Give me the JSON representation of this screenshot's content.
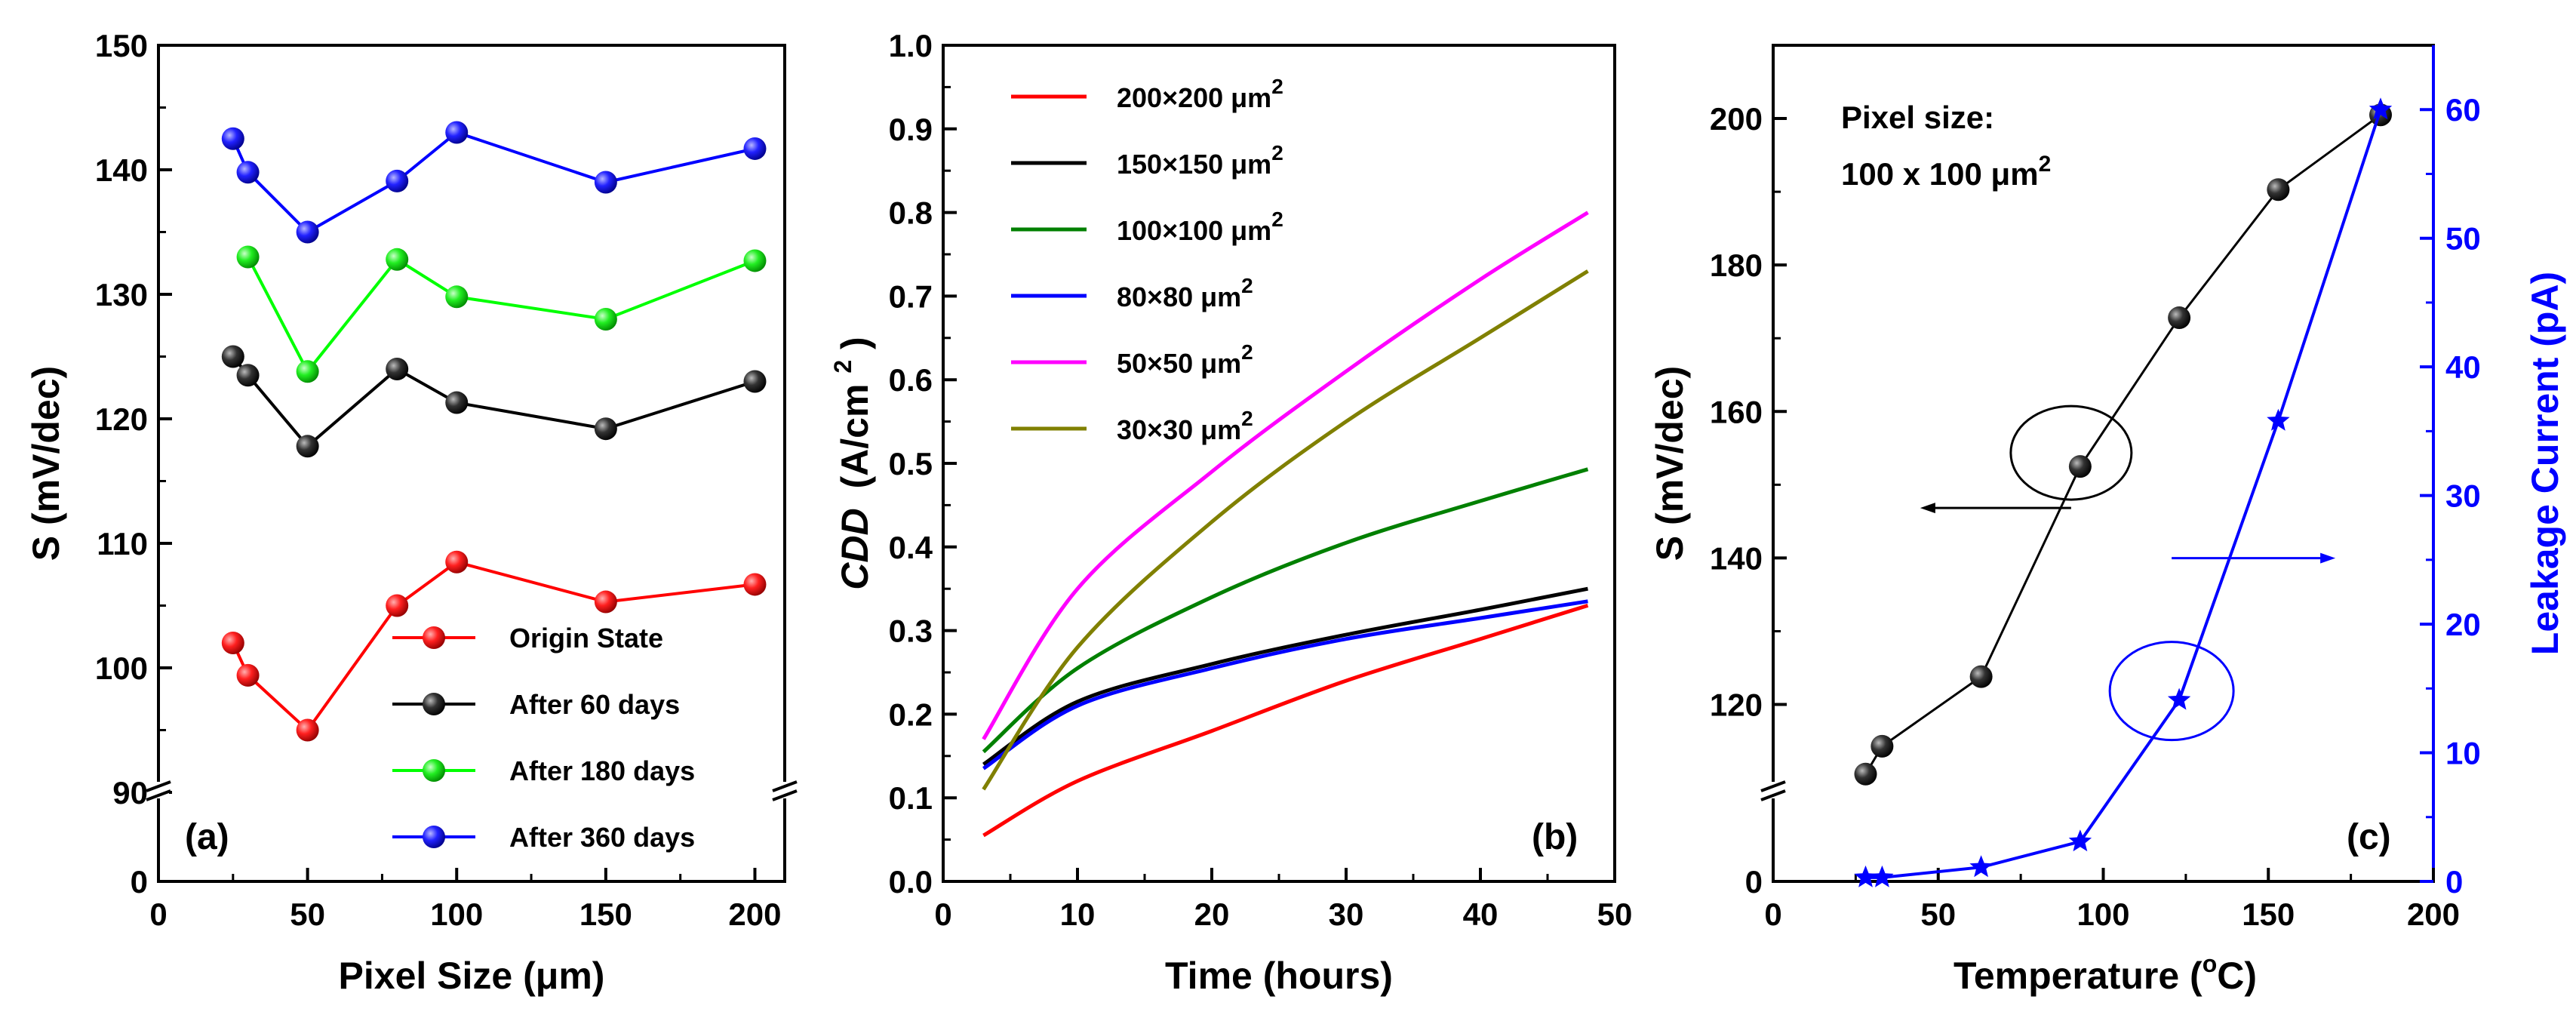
{
  "chart_data": [
    {
      "panel": "(a)",
      "type": "line",
      "xlabel": "Pixel Size (μm)",
      "ylabel": "S (mV/dec)",
      "xlim": [
        0,
        210
      ],
      "xticks": [
        "0",
        "50",
        "100",
        "150",
        "200"
      ],
      "ylim_lower": [
        0,
        10
      ],
      "ylim_upper": [
        90,
        150
      ],
      "yticks_lower": [
        "0"
      ],
      "yticks_upper": [
        "90",
        "100",
        "110",
        "120",
        "130",
        "140",
        "150"
      ],
      "axis_break": true,
      "legend_position": "bottom-right",
      "series": [
        {
          "name": "Origin State",
          "color": "#ff0000",
          "x": [
            25,
            30,
            50,
            80,
            100,
            150,
            200
          ],
          "values": [
            102,
            99.4,
            95,
            105,
            108.5,
            105.3,
            106.7
          ]
        },
        {
          "name": "After 60 days",
          "color": "#000000",
          "x": [
            25,
            30,
            50,
            80,
            100,
            150,
            200
          ],
          "values": [
            125,
            123.5,
            117.8,
            124,
            121.3,
            119.2,
            123
          ]
        },
        {
          "name": "After 180 days",
          "color": "#00ff00",
          "x": [
            30,
            50,
            80,
            100,
            150,
            200
          ],
          "values": [
            133,
            123.8,
            132.8,
            129.8,
            128,
            132.7
          ]
        },
        {
          "name": "After 360 days",
          "color": "#0000ff",
          "x": [
            25,
            30,
            50,
            80,
            100,
            150,
            200
          ],
          "values": [
            142.5,
            139.8,
            135,
            139.1,
            143,
            139,
            141.7
          ]
        }
      ]
    },
    {
      "panel": "(b)",
      "type": "line",
      "xlabel": "Time (hours)",
      "ylabel_parts": [
        "CDD",
        "(A/cm",
        "2",
        ")"
      ],
      "xlim": [
        0,
        50
      ],
      "ylim": [
        0,
        1.0
      ],
      "xticks": [
        "0",
        "10",
        "20",
        "30",
        "40",
        "50"
      ],
      "yticks": [
        "0.0",
        "0.1",
        "0.2",
        "0.3",
        "0.4",
        "0.5",
        "0.6",
        "0.7",
        "0.8",
        "0.9",
        "1.0"
      ],
      "legend_position": "top-left",
      "legend_unit": "μm",
      "legend_sup": "2",
      "series": [
        {
          "name": "200×200",
          "color": "#ff0000",
          "x": [
            3,
            10,
            20,
            30,
            40,
            48
          ],
          "values": [
            0.055,
            0.12,
            0.18,
            0.24,
            0.29,
            0.33
          ]
        },
        {
          "name": "150×150",
          "color": "#000000",
          "x": [
            3,
            10,
            20,
            30,
            40,
            48
          ],
          "values": [
            0.14,
            0.215,
            0.26,
            0.295,
            0.325,
            0.35
          ]
        },
        {
          "name": "100×100",
          "color": "#008000",
          "x": [
            3,
            10,
            20,
            30,
            40,
            48
          ],
          "values": [
            0.155,
            0.255,
            0.34,
            0.405,
            0.455,
            0.493
          ]
        },
        {
          "name": "80×80",
          "color": "#0000ff",
          "x": [
            3,
            10,
            20,
            30,
            40,
            48
          ],
          "values": [
            0.135,
            0.21,
            0.255,
            0.29,
            0.315,
            0.335
          ]
        },
        {
          "name": "50×50",
          "color": "#ff00ff",
          "x": [
            3,
            10,
            20,
            30,
            40,
            48
          ],
          "values": [
            0.17,
            0.35,
            0.49,
            0.61,
            0.72,
            0.8
          ]
        },
        {
          "name": "30×30",
          "color": "#808000",
          "x": [
            3,
            10,
            20,
            30,
            40,
            48
          ],
          "values": [
            0.11,
            0.28,
            0.43,
            0.55,
            0.65,
            0.73
          ]
        }
      ]
    },
    {
      "panel": "(c)",
      "type": "line",
      "xlabel_parts": [
        "Temperature (",
        "o",
        "C)"
      ],
      "ylabel": "S (mV/dec)",
      "ylabel_right": "Leakage Current (pA)",
      "right_axis_color": "#0000ff",
      "xlim": [
        0,
        200
      ],
      "xticks": [
        "0",
        "50",
        "100",
        "150",
        "200"
      ],
      "ylim_lower": [
        0,
        10
      ],
      "ylim_upper": [
        108,
        210
      ],
      "yticks_lower": [
        "0"
      ],
      "yticks_upper": [
        "120",
        "140",
        "160",
        "180",
        "200"
      ],
      "ylim_right": [
        0,
        65
      ],
      "yticks_right": [
        "0",
        "10",
        "20",
        "30",
        "40",
        "50",
        "60"
      ],
      "axis_break": true,
      "annotation_lines": [
        "Pixel size:",
        "100 x 100 μm",
        "2"
      ],
      "series": [
        {
          "name": "S",
          "axis": "left",
          "color": "#000000",
          "marker": "sphere",
          "x": [
            28,
            33,
            63,
            93,
            123,
            153,
            184
          ],
          "values": [
            110.5,
            114.3,
            123.8,
            152.5,
            172.8,
            190.3,
            200.5
          ]
        },
        {
          "name": "Leakage Current",
          "axis": "right",
          "color": "#0000ff",
          "marker": "star",
          "x": [
            28,
            33,
            63,
            93,
            123,
            153,
            184
          ],
          "values": [
            0.3,
            0.3,
            1.1,
            3.1,
            14.1,
            35.8,
            60
          ]
        }
      ]
    }
  ]
}
